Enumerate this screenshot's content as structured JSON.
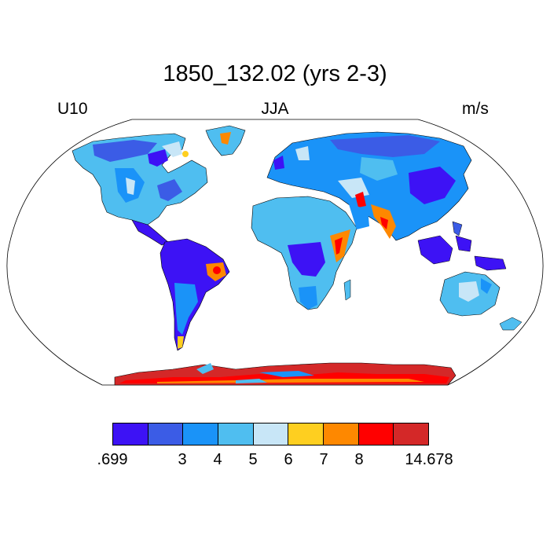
{
  "title": "1850_132.02 (yrs 2-3)",
  "left_label": "U10",
  "center_label": "JJA",
  "right_label": "m/s",
  "colorbar": {
    "colors": [
      "#3d12f5",
      "#3b5ce6",
      "#1a93f8",
      "#4fbef0",
      "#c8e6f7",
      "#fecf20",
      "#fe8800",
      "#ff0000",
      "#d42828"
    ],
    "ticks": [
      ".699",
      "3",
      "4",
      "5",
      "6",
      "7",
      "8",
      "14.678"
    ]
  },
  "chart_data": {
    "type": "heatmap",
    "variable": "U10",
    "season": "JJA",
    "units": "m/s",
    "projection": "Robinson",
    "levels": [
      0.699,
      3,
      4,
      5,
      6,
      7,
      8,
      14.678
    ]
  }
}
